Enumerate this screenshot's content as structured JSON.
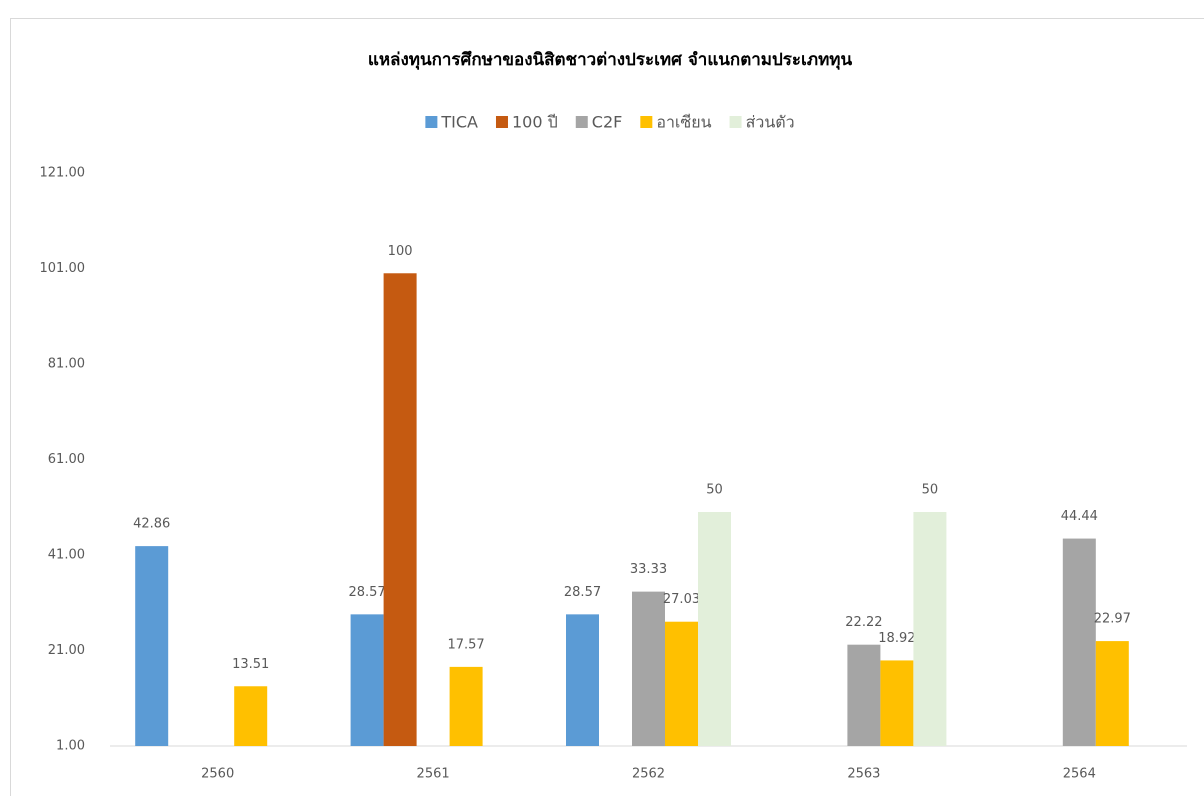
{
  "chart_data": {
    "type": "bar",
    "title": "แหล่งทุนการศึกษาของนิสิตชาวต่างประเทศ  จำแนกตามประเภททุน",
    "categories": [
      "2560",
      "2561",
      "2562",
      "2563",
      "2564"
    ],
    "series": [
      {
        "name": "TICA",
        "color": "#5b9bd5",
        "values": [
          42.86,
          28.57,
          28.57,
          null,
          null
        ]
      },
      {
        "name": "100 ปี",
        "color": "#c55a11",
        "values": [
          null,
          100,
          null,
          null,
          null
        ]
      },
      {
        "name": "C2F",
        "color": "#a5a5a5",
        "values": [
          null,
          null,
          33.33,
          22.22,
          44.44
        ]
      },
      {
        "name": "อาเซียน",
        "color": "#ffc000",
        "values": [
          13.51,
          17.57,
          27.03,
          18.92,
          22.97
        ]
      },
      {
        "name": "ส่วนตัว",
        "color": "#e2efda",
        "values": [
          null,
          null,
          50,
          50,
          null
        ]
      }
    ],
    "ylim": [
      1,
      121
    ],
    "yticks": [
      {
        "value": 1,
        "label": "1.00"
      },
      {
        "value": 21,
        "label": "21.00"
      },
      {
        "value": 41,
        "label": "41.00"
      },
      {
        "value": 61,
        "label": "61.00"
      },
      {
        "value": 81,
        "label": "81.00"
      },
      {
        "value": 101,
        "label": "101.00"
      },
      {
        "value": 121,
        "label": "121.00"
      }
    ],
    "grid": false,
    "legend": "top"
  }
}
